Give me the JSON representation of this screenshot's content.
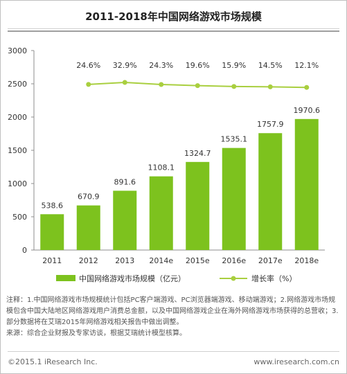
{
  "chart_data": {
    "type": "bar+line",
    "title": "2011-2018年中国网络游戏市场规模",
    "categories": [
      "2011",
      "2012",
      "2013",
      "2014e",
      "2015e",
      "2016e",
      "2017e",
      "2018e"
    ],
    "series": [
      {
        "name": "中国网络游戏市场规模（亿元）",
        "type": "bar",
        "values": [
          538.6,
          670.9,
          891.6,
          1108.1,
          1324.7,
          1535.1,
          1757.9,
          1970.6
        ],
        "labels": [
          "538.6",
          "670.9",
          "891.6",
          "1108.1",
          "1324.7",
          "1535.1",
          "1757.9",
          "1970.6"
        ]
      },
      {
        "name": "增长率（%）",
        "type": "line",
        "values": [
          null,
          24.6,
          32.9,
          24.3,
          19.6,
          15.9,
          14.5,
          12.1
        ],
        "labels": [
          "",
          "24.6%",
          "32.9%",
          "24.3%",
          "19.6%",
          "15.9%",
          "14.5%",
          "12.1%"
        ]
      }
    ],
    "ylim": [
      0,
      3000
    ],
    "yticks": [
      "0",
      "500",
      "1000",
      "1500",
      "2000",
      "2500",
      "3000"
    ],
    "grid": false,
    "legend_position": "bottom",
    "colors": {
      "bar": "#7dc21e",
      "line": "#a9cf3f",
      "axis": "#8c8c8c",
      "text": "#333333"
    }
  },
  "notes": [
    "注释：1.中国网络游戏市场规模统计包括PC客户端游戏、PC浏览器端游戏、移动端游戏；2.网络游戏市场规模包含中国大陆地区网络游戏用户消费总金额，以及中国网络游戏企业在海外网络游戏市场获得的总营收；3.部分数据将在艾瑞2015年网络游戏相关报告中做出调整。",
    "来源：综合企业财报及专家访谈，根据艾瑞统计模型核算。"
  ],
  "footer": {
    "copyright": "©2015.1 iResearch Inc.",
    "website": "www.iresearch.com.cn"
  }
}
